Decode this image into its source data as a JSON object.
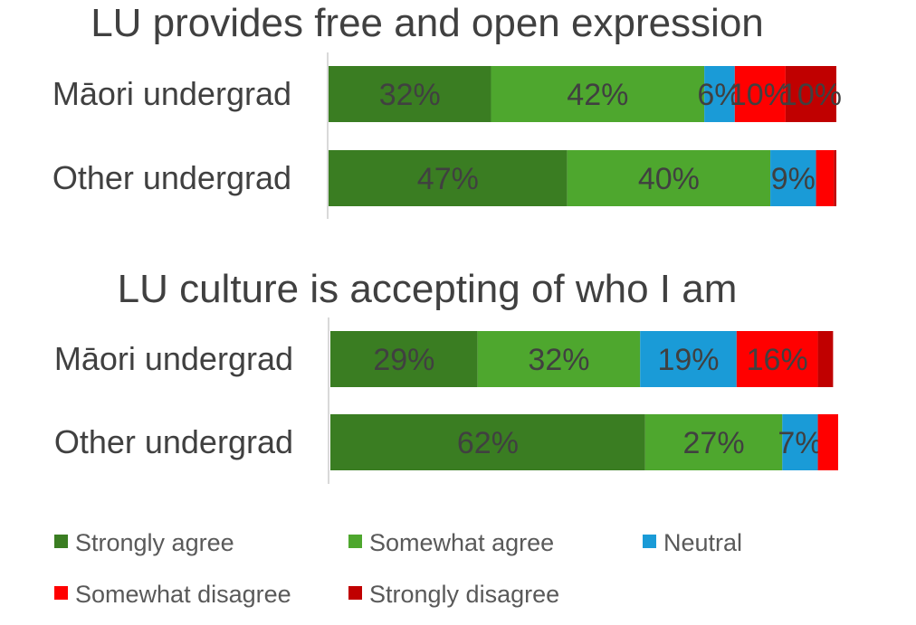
{
  "chart_data": [
    {
      "type": "bar",
      "orientation": "horizontal",
      "stacked": true,
      "title": "LU provides free and open expression",
      "categories": [
        "Māori undergrad",
        "Other undergrad"
      ],
      "xlim": [
        0,
        100
      ],
      "series": [
        {
          "name": "Strongly agree",
          "color": "#3a7d22",
          "values": [
            32,
            47
          ],
          "labels": [
            "32%",
            "47%"
          ]
        },
        {
          "name": "Somewhat agree",
          "color": "#4ea72e",
          "values": [
            42,
            40
          ],
          "labels": [
            "42%",
            "40%"
          ]
        },
        {
          "name": "Neutral",
          "color": "#1a9bd7",
          "values": [
            6,
            9
          ],
          "labels": [
            "6%",
            "9%"
          ]
        },
        {
          "name": "Somewhat disagree",
          "color": "#ff0000",
          "values": [
            10,
            3.5
          ],
          "labels": [
            "10%",
            ""
          ]
        },
        {
          "name": "Strongly disagree",
          "color": "#c00000",
          "values": [
            10,
            0.5
          ],
          "labels": [
            "10%",
            ""
          ]
        }
      ]
    },
    {
      "type": "bar",
      "orientation": "horizontal",
      "stacked": true,
      "title": "LU culture is accepting of who I am",
      "categories": [
        "Māori undergrad",
        "Other undergrad"
      ],
      "xlim": [
        0,
        100
      ],
      "series": [
        {
          "name": "Strongly agree",
          "color": "#3a7d22",
          "values": [
            29,
            62
          ],
          "labels": [
            "29%",
            "62%"
          ]
        },
        {
          "name": "Somewhat agree",
          "color": "#4ea72e",
          "values": [
            32,
            27
          ],
          "labels": [
            "32%",
            "27%"
          ]
        },
        {
          "name": "Neutral",
          "color": "#1a9bd7",
          "values": [
            19,
            7
          ],
          "labels": [
            "19%",
            "7%"
          ]
        },
        {
          "name": "Somewhat disagree",
          "color": "#ff0000",
          "values": [
            16,
            4
          ],
          "labels": [
            "16%",
            ""
          ]
        },
        {
          "name": "Strongly disagree",
          "color": "#c00000",
          "values": [
            3,
            0
          ],
          "labels": [
            "",
            ""
          ]
        }
      ]
    }
  ],
  "legend": {
    "items": [
      {
        "label": "Strongly agree",
        "color": "#3a7d22"
      },
      {
        "label": "Somewhat agree",
        "color": "#4ea72e"
      },
      {
        "label": "Neutral",
        "color": "#1a9bd7"
      },
      {
        "label": "Somewhat disagree",
        "color": "#ff0000"
      },
      {
        "label": "Strongly disagree",
        "color": "#c00000"
      }
    ]
  }
}
